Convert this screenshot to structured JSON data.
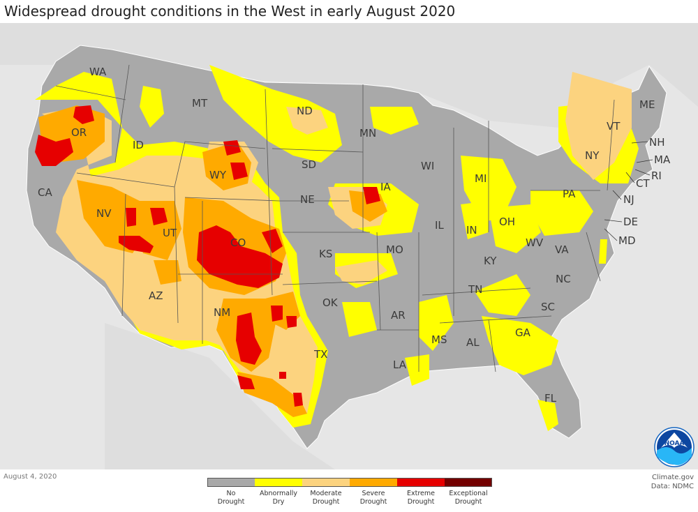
{
  "title": "Widespread drought conditions in the West in early August 2020",
  "date": "August 4, 2020",
  "credit_line1": "Climate.gov",
  "credit_line2": "Data: NDMC",
  "logo_text": "NOAA",
  "legend": [
    {
      "label": "No\nDrought",
      "color": "#a9a9a9"
    },
    {
      "label": "Abnormally\nDry",
      "color": "#ffff00"
    },
    {
      "label": "Moderate\nDrought",
      "color": "#fcd37f"
    },
    {
      "label": "Severe\nDrought",
      "color": "#ffaa00"
    },
    {
      "label": "Extreme\nDrought",
      "color": "#e60000"
    },
    {
      "label": "Exceptional\nDrought",
      "color": "#730000"
    }
  ],
  "states": {
    "WA": "WA",
    "OR": "OR",
    "CA": "CA",
    "ID": "ID",
    "NV": "NV",
    "MT": "MT",
    "WY": "WY",
    "UT": "UT",
    "AZ": "AZ",
    "CO": "CO",
    "NM": "NM",
    "ND": "ND",
    "SD": "SD",
    "NE": "NE",
    "KS": "KS",
    "OK": "OK",
    "TX": "TX",
    "MN": "MN",
    "IA": "IA",
    "MO": "MO",
    "AR": "AR",
    "LA": "LA",
    "WI": "WI",
    "IL": "IL",
    "MI": "MI",
    "IN": "IN",
    "OH": "OH",
    "KY": "KY",
    "TN": "TN",
    "MS": "MS",
    "AL": "AL",
    "GA": "GA",
    "FL": "FL",
    "SC": "SC",
    "NC": "NC",
    "VA": "VA",
    "WV": "WV",
    "PA": "PA",
    "NY": "NY",
    "VT": "VT",
    "NH": "NH",
    "ME": "ME",
    "MA": "MA",
    "RI": "RI",
    "CT": "CT",
    "NJ": "NJ",
    "DE": "DE",
    "MD": "MD"
  }
}
